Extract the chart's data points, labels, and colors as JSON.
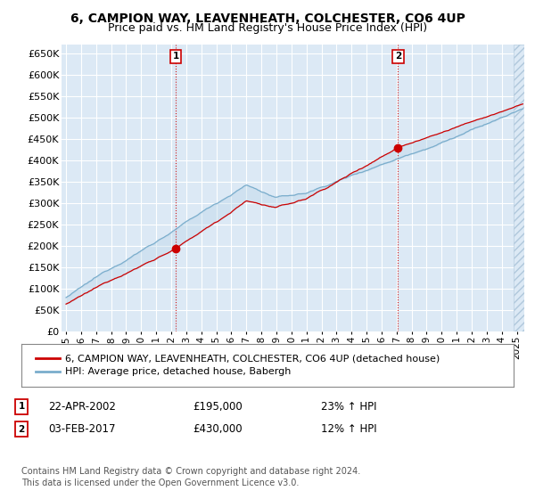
{
  "title": "6, CAMPION WAY, LEAVENHEATH, COLCHESTER, CO6 4UP",
  "subtitle": "Price paid vs. HM Land Registry's House Price Index (HPI)",
  "ylim": [
    0,
    670000
  ],
  "yticks": [
    0,
    50000,
    100000,
    150000,
    200000,
    250000,
    300000,
    350000,
    400000,
    450000,
    500000,
    550000,
    600000,
    650000
  ],
  "xlim_start": 1994.7,
  "xlim_end": 2025.5,
  "background_color": "#dce9f5",
  "grid_color": "#ffffff",
  "sale1_x": 2002.31,
  "sale1_y": 195000,
  "sale1_label": "1",
  "sale1_date": "22-APR-2002",
  "sale1_price": "£195,000",
  "sale1_hpi": "23% ↑ HPI",
  "sale2_x": 2017.09,
  "sale2_y": 430000,
  "sale2_label": "2",
  "sale2_date": "03-FEB-2017",
  "sale2_price": "£430,000",
  "sale2_hpi": "12% ↑ HPI",
  "line_color_red": "#cc0000",
  "line_color_blue": "#7aadcc",
  "fill_color": "#b8d4e8",
  "vline_color": "#cc0000",
  "legend_label_red": "6, CAMPION WAY, LEAVENHEATH, COLCHESTER, CO6 4UP (detached house)",
  "legend_label_blue": "HPI: Average price, detached house, Babergh",
  "footer": "Contains HM Land Registry data © Crown copyright and database right 2024.\nThis data is licensed under the Open Government Licence v3.0.",
  "title_fontsize": 10,
  "subtitle_fontsize": 9,
  "axis_fontsize": 8,
  "legend_fontsize": 8,
  "footer_fontsize": 7
}
